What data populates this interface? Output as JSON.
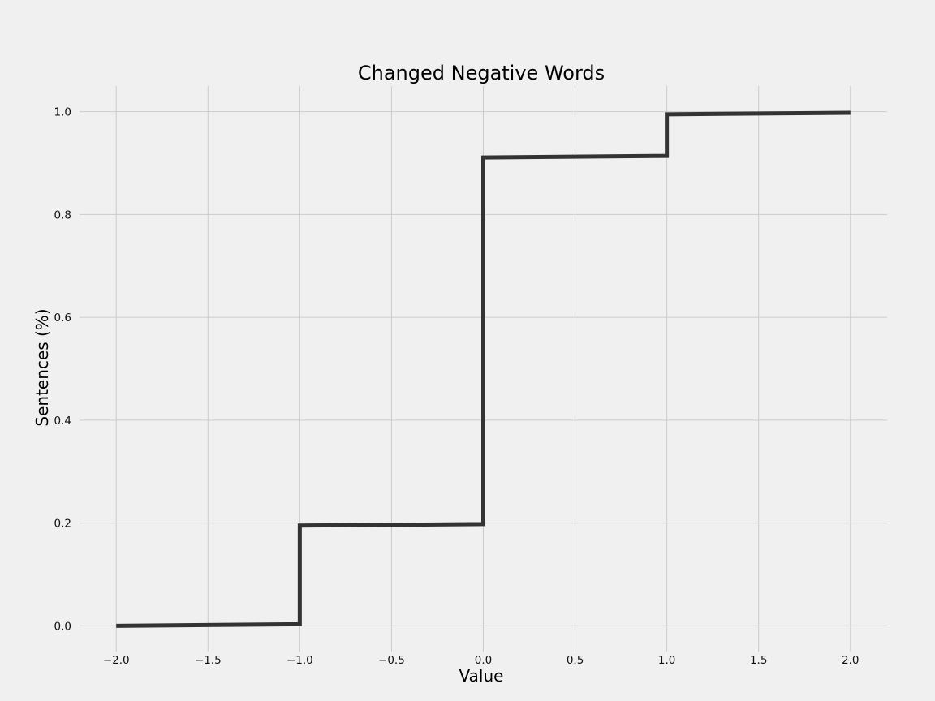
{
  "chart_data": {
    "type": "line",
    "title": "Changed Negative Words",
    "xlabel": "Value",
    "ylabel": "Sentences (%)",
    "xlim": [
      -2.2,
      2.2
    ],
    "ylim": [
      -0.05,
      1.05
    ],
    "xticks": [
      -2.0,
      -1.5,
      -1.0,
      -0.5,
      0.0,
      0.5,
      1.0,
      1.5,
      2.0
    ],
    "xtick_labels": [
      "−2.0",
      "−1.5",
      "−1.0",
      "−0.5",
      "0.0",
      "0.5",
      "1.0",
      "1.5",
      "2.0"
    ],
    "yticks": [
      0.0,
      0.2,
      0.4,
      0.6,
      0.8,
      1.0
    ],
    "ytick_labels": [
      "0.0",
      "0.2",
      "0.4",
      "0.6",
      "0.8",
      "1.0"
    ],
    "grid": true,
    "background_color": "#f0f0f0",
    "grid_color": "#cbcbcb",
    "series": [
      {
        "color": "#333333",
        "step": true,
        "points": [
          {
            "x": -2.0,
            "y": 0.0
          },
          {
            "x": -1.0,
            "y": 0.003
          },
          {
            "x": -1.0,
            "y": 0.195
          },
          {
            "x": 0.0,
            "y": 0.198
          },
          {
            "x": 0.0,
            "y": 0.911
          },
          {
            "x": 1.0,
            "y": 0.914
          },
          {
            "x": 1.0,
            "y": 0.995
          },
          {
            "x": 2.0,
            "y": 0.998
          }
        ]
      }
    ]
  }
}
